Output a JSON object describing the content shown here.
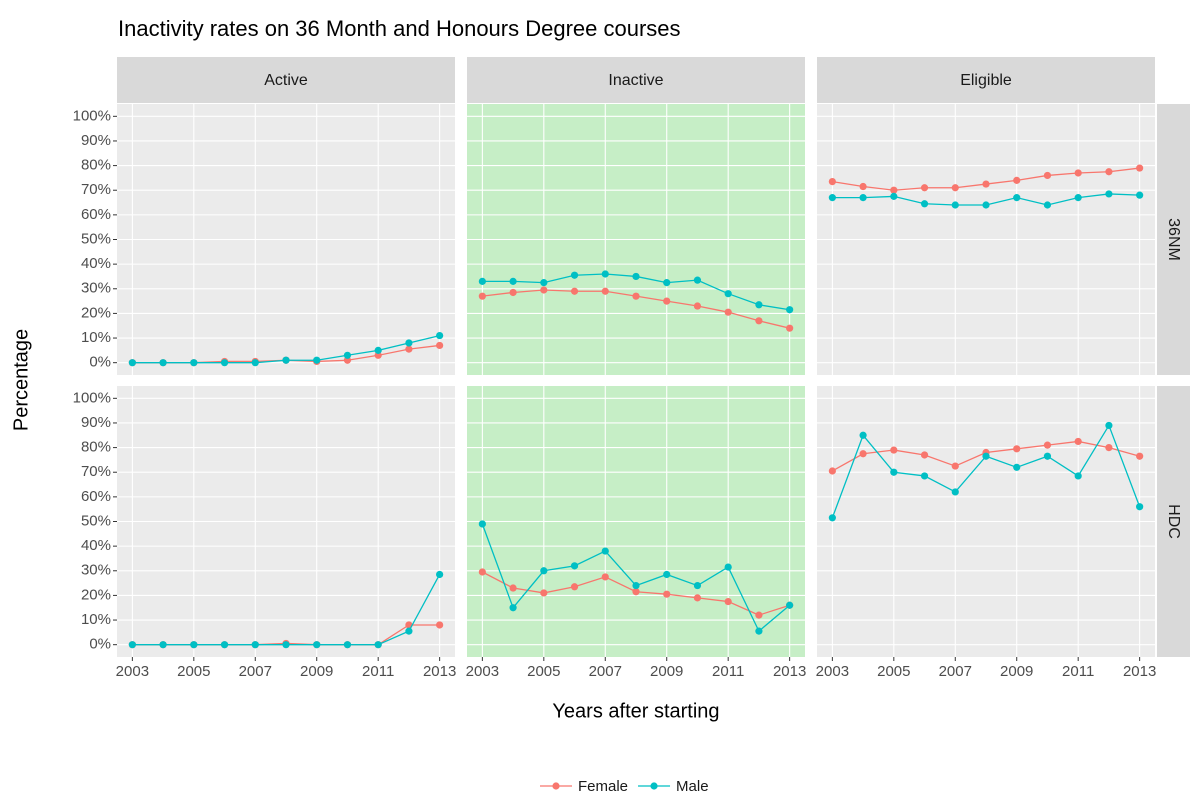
{
  "title": "Inactivity rates on 36 Month and Honours Degree courses",
  "x_label": "Years after starting",
  "y_label": "Percentage",
  "facets": {
    "columns": [
      "Active",
      "Inactive",
      "Eligible"
    ],
    "rows": [
      "36NM",
      "HDC"
    ]
  },
  "chart_data": [
    {
      "type": "line",
      "background": "#ebebeb",
      "x": [
        2003,
        2004,
        2005,
        2006,
        2007,
        2008,
        2009,
        2010,
        2011,
        2012,
        2013
      ],
      "xlim": [
        2002.5,
        2013.5
      ],
      "xticks": [
        2003,
        2005,
        2007,
        2009,
        2011,
        2013
      ],
      "ylim": [
        -5,
        105
      ],
      "yticks": [
        {
          "value": 0,
          "label": "0%"
        },
        {
          "value": 10,
          "label": "10%"
        },
        {
          "value": 20,
          "label": "20%"
        },
        {
          "value": 30,
          "label": "30%"
        },
        {
          "value": 40,
          "label": "40%"
        },
        {
          "value": 50,
          "label": "50%"
        },
        {
          "value": 60,
          "label": "60%"
        },
        {
          "value": 70,
          "label": "70%"
        },
        {
          "value": 80,
          "label": "80%"
        },
        {
          "value": 90,
          "label": "90%"
        },
        {
          "value": 100,
          "label": "100%"
        }
      ],
      "series": [
        {
          "name": "Female",
          "color": "#f8766d",
          "values": [
            0,
            0,
            0,
            0.5,
            0.5,
            1,
            0.5,
            1,
            3,
            5.5,
            7
          ]
        },
        {
          "name": "Male",
          "color": "#00bfc4",
          "values": [
            0,
            0,
            0,
            0,
            0,
            1,
            1,
            3,
            5,
            8,
            11
          ]
        }
      ]
    },
    {
      "type": "line",
      "background": "#c6eec6",
      "x": [
        2003,
        2004,
        2005,
        2006,
        2007,
        2008,
        2009,
        2010,
        2011,
        2012,
        2013
      ],
      "xlim": [
        2002.5,
        2013.5
      ],
      "xticks": [
        2003,
        2005,
        2007,
        2009,
        2011,
        2013
      ],
      "ylim": [
        -5,
        105
      ],
      "yticks": [
        {
          "value": 0,
          "label": "0%"
        },
        {
          "value": 10,
          "label": "10%"
        },
        {
          "value": 20,
          "label": "20%"
        },
        {
          "value": 30,
          "label": "30%"
        },
        {
          "value": 40,
          "label": "40%"
        },
        {
          "value": 50,
          "label": "50%"
        },
        {
          "value": 60,
          "label": "60%"
        },
        {
          "value": 70,
          "label": "70%"
        },
        {
          "value": 80,
          "label": "80%"
        },
        {
          "value": 90,
          "label": "90%"
        },
        {
          "value": 100,
          "label": "100%"
        }
      ],
      "series": [
        {
          "name": "Female",
          "color": "#f8766d",
          "values": [
            27,
            28.5,
            29.5,
            29,
            29,
            27,
            25,
            23,
            20.5,
            17,
            14
          ]
        },
        {
          "name": "Male",
          "color": "#00bfc4",
          "values": [
            33,
            33,
            32.5,
            35.5,
            36,
            35,
            32.5,
            33.5,
            28,
            23.5,
            21.5
          ]
        }
      ]
    },
    {
      "type": "line",
      "background": "#ebebeb",
      "x": [
        2003,
        2004,
        2005,
        2006,
        2007,
        2008,
        2009,
        2010,
        2011,
        2012,
        2013
      ],
      "xlim": [
        2002.5,
        2013.5
      ],
      "xticks": [
        2003,
        2005,
        2007,
        2009,
        2011,
        2013
      ],
      "ylim": [
        -5,
        105
      ],
      "yticks": [
        {
          "value": 0,
          "label": "0%"
        },
        {
          "value": 10,
          "label": "10%"
        },
        {
          "value": 20,
          "label": "20%"
        },
        {
          "value": 30,
          "label": "30%"
        },
        {
          "value": 40,
          "label": "40%"
        },
        {
          "value": 50,
          "label": "50%"
        },
        {
          "value": 60,
          "label": "60%"
        },
        {
          "value": 70,
          "label": "70%"
        },
        {
          "value": 80,
          "label": "80%"
        },
        {
          "value": 90,
          "label": "90%"
        },
        {
          "value": 100,
          "label": "100%"
        }
      ],
      "series": [
        {
          "name": "Female",
          "color": "#f8766d",
          "values": [
            73.5,
            71.5,
            70,
            71,
            71,
            72.5,
            74,
            76,
            77,
            77.5,
            79
          ]
        },
        {
          "name": "Male",
          "color": "#00bfc4",
          "values": [
            67,
            67,
            67.5,
            64.5,
            64,
            64,
            67,
            64,
            67,
            68.5,
            68
          ]
        }
      ]
    },
    {
      "type": "line",
      "background": "#ebebeb",
      "x": [
        2003,
        2004,
        2005,
        2006,
        2007,
        2008,
        2009,
        2010,
        2011,
        2012,
        2013
      ],
      "xlim": [
        2002.5,
        2013.5
      ],
      "xticks": [
        2003,
        2005,
        2007,
        2009,
        2011,
        2013
      ],
      "ylim": [
        -5,
        105
      ],
      "yticks": [
        {
          "value": 0,
          "label": "0%"
        },
        {
          "value": 10,
          "label": "10%"
        },
        {
          "value": 20,
          "label": "20%"
        },
        {
          "value": 30,
          "label": "30%"
        },
        {
          "value": 40,
          "label": "40%"
        },
        {
          "value": 50,
          "label": "50%"
        },
        {
          "value": 60,
          "label": "60%"
        },
        {
          "value": 70,
          "label": "70%"
        },
        {
          "value": 80,
          "label": "80%"
        },
        {
          "value": 90,
          "label": "90%"
        },
        {
          "value": 100,
          "label": "100%"
        }
      ],
      "series": [
        {
          "name": "Female",
          "color": "#f8766d",
          "values": [
            0,
            0,
            0,
            0,
            0,
            0.5,
            0,
            0,
            0,
            8,
            8
          ]
        },
        {
          "name": "Male",
          "color": "#00bfc4",
          "values": [
            0,
            0,
            0,
            0,
            0,
            0,
            0,
            0,
            0,
            5.5,
            28.5
          ]
        }
      ]
    },
    {
      "type": "line",
      "background": "#c6eec6",
      "x": [
        2003,
        2004,
        2005,
        2006,
        2007,
        2008,
        2009,
        2010,
        2011,
        2012,
        2013
      ],
      "xlim": [
        2002.5,
        2013.5
      ],
      "xticks": [
        2003,
        2005,
        2007,
        2009,
        2011,
        2013
      ],
      "ylim": [
        -5,
        105
      ],
      "yticks": [
        {
          "value": 0,
          "label": "0%"
        },
        {
          "value": 10,
          "label": "10%"
        },
        {
          "value": 20,
          "label": "20%"
        },
        {
          "value": 30,
          "label": "30%"
        },
        {
          "value": 40,
          "label": "40%"
        },
        {
          "value": 50,
          "label": "50%"
        },
        {
          "value": 60,
          "label": "60%"
        },
        {
          "value": 70,
          "label": "70%"
        },
        {
          "value": 80,
          "label": "80%"
        },
        {
          "value": 90,
          "label": "90%"
        },
        {
          "value": 100,
          "label": "100%"
        }
      ],
      "series": [
        {
          "name": "Female",
          "color": "#f8766d",
          "values": [
            29.5,
            23,
            21,
            23.5,
            27.5,
            21.5,
            20.5,
            19,
            17.5,
            12,
            16
          ]
        },
        {
          "name": "Male",
          "color": "#00bfc4",
          "values": [
            49,
            15,
            30,
            32,
            38,
            24,
            28.5,
            24,
            31.5,
            5.5,
            16
          ]
        }
      ]
    },
    {
      "type": "line",
      "background": "#ebebeb",
      "x": [
        2003,
        2004,
        2005,
        2006,
        2007,
        2008,
        2009,
        2010,
        2011,
        2012,
        2013
      ],
      "xlim": [
        2002.5,
        2013.5
      ],
      "xticks": [
        2003,
        2005,
        2007,
        2009,
        2011,
        2013
      ],
      "ylim": [
        -5,
        105
      ],
      "yticks": [
        {
          "value": 0,
          "label": "0%"
        },
        {
          "value": 10,
          "label": "10%"
        },
        {
          "value": 20,
          "label": "20%"
        },
        {
          "value": 30,
          "label": "30%"
        },
        {
          "value": 40,
          "label": "40%"
        },
        {
          "value": 50,
          "label": "50%"
        },
        {
          "value": 60,
          "label": "60%"
        },
        {
          "value": 70,
          "label": "70%"
        },
        {
          "value": 80,
          "label": "80%"
        },
        {
          "value": 90,
          "label": "90%"
        },
        {
          "value": 100,
          "label": "100%"
        }
      ],
      "series": [
        {
          "name": "Female",
          "color": "#f8766d",
          "values": [
            70.5,
            77.5,
            79,
            77,
            72.5,
            78,
            79.5,
            81,
            82.5,
            80,
            76.5
          ]
        },
        {
          "name": "Male",
          "color": "#00bfc4",
          "values": [
            51.5,
            85,
            70,
            68.5,
            62,
            76.5,
            72,
            76.5,
            68.5,
            89,
            56
          ]
        }
      ]
    }
  ]
}
